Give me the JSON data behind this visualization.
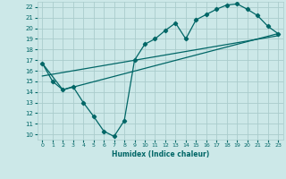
{
  "xlabel": "Humidex (Indice chaleur)",
  "ylabel": "",
  "xlim": [
    -0.5,
    23.5
  ],
  "ylim": [
    9.5,
    22.5
  ],
  "xticks": [
    0,
    1,
    2,
    3,
    4,
    5,
    6,
    7,
    8,
    9,
    10,
    11,
    12,
    13,
    14,
    15,
    16,
    17,
    18,
    19,
    20,
    21,
    22,
    23
  ],
  "yticks": [
    10,
    11,
    12,
    13,
    14,
    15,
    16,
    17,
    18,
    19,
    20,
    21,
    22
  ],
  "bg_color": "#cce8e8",
  "grid_color": "#aacccc",
  "line_color": "#006666",
  "line1_x": [
    0,
    1,
    2,
    3,
    4,
    5,
    6,
    7,
    8,
    9,
    10,
    11,
    12,
    13,
    14,
    15,
    16,
    17,
    18,
    19,
    20,
    21,
    22,
    23
  ],
  "line1_y": [
    16.7,
    15.0,
    14.2,
    14.5,
    13.0,
    11.7,
    10.3,
    9.8,
    11.3,
    17.0,
    18.5,
    19.0,
    19.8,
    20.5,
    19.0,
    20.8,
    21.3,
    21.8,
    22.2,
    22.3,
    21.8,
    21.2,
    20.2,
    19.5
  ],
  "line2_x": [
    0,
    2,
    23
  ],
  "line2_y": [
    16.7,
    14.2,
    19.5
  ],
  "line3_x": [
    0,
    23
  ],
  "line3_y": [
    15.5,
    19.3
  ]
}
